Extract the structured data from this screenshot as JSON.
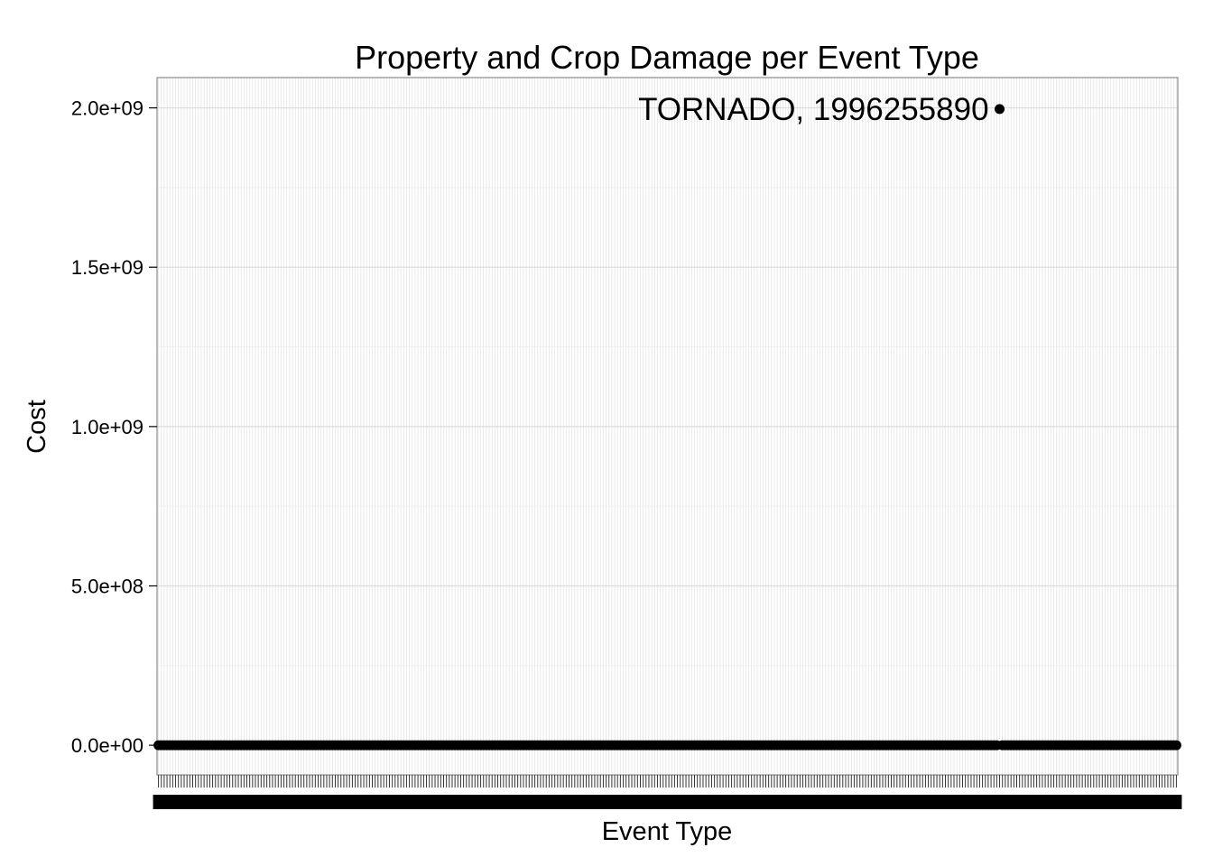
{
  "chart_data": {
    "type": "scatter",
    "title": "Property and Crop Damage per Event Type",
    "xlabel": "Event Type",
    "ylabel": "Cost",
    "ylim": [
      -93000000,
      2095000000
    ],
    "yticks": [
      0,
      500000000,
      1000000000,
      1500000000,
      2000000000
    ],
    "ytick_labels": [
      "0.0e+00",
      "5.0e+08",
      "1.0e+09",
      "1.5e+09",
      "2.0e+09"
    ],
    "category_count": 358,
    "grid": true,
    "legend": "none",
    "baseline_value": 0,
    "highlight": {
      "category": "TORNADO",
      "value": 1996255890,
      "category_index": 295,
      "label": "TORNADO, 1996255890"
    },
    "colors": {
      "points": "#000000",
      "grid_major": "#dcdcdc",
      "grid_minor": "#efefef",
      "panel_border": "#8c8c8c"
    }
  }
}
